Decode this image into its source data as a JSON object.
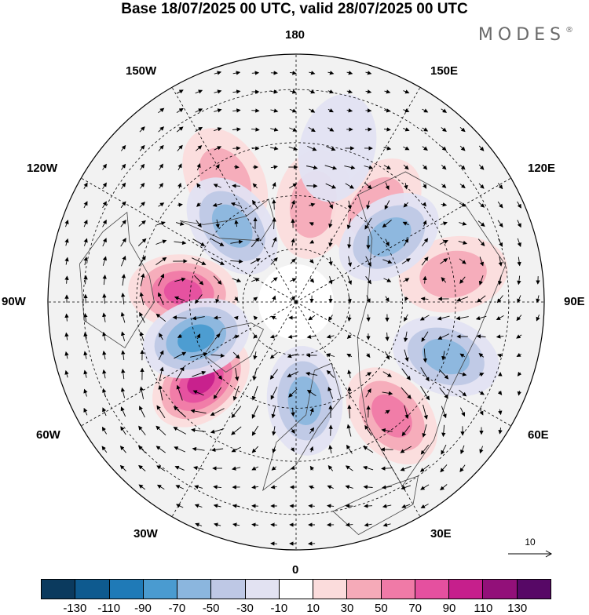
{
  "title": "Base 18/07/2025 00 UTC, valid 28/07/2025 00 UTC",
  "brand": "MODES",
  "brand_mark": "®",
  "longitude_labels": {
    "n180": "180",
    "n150e": "150E",
    "n120e": "120E",
    "n90e": "90E",
    "n60e": "60E",
    "n30e": "30E",
    "n0": "0",
    "n30w": "30W",
    "n60w": "60W",
    "n90w": "90W",
    "n120w": "120W",
    "n150w": "150W"
  },
  "reference_vector": {
    "label": "10"
  },
  "colorbar": {
    "colors": [
      "#0b3a5e",
      "#0e5a8f",
      "#1f7ab7",
      "#4a9bd0",
      "#8bb6de",
      "#bec8e5",
      "#e2e2f2",
      "#ffffff",
      "#fbdcdc",
      "#f5aab8",
      "#f07aa7",
      "#e5509f",
      "#c61f8c",
      "#921079",
      "#570866"
    ],
    "labels": [
      "-130",
      "-110",
      "-90",
      "-70",
      "-50",
      "-30",
      "-10",
      "10",
      "30",
      "50",
      "70",
      "90",
      "110",
      "130"
    ]
  },
  "anomaly_centers": [
    {
      "lon": -95,
      "lat": 58,
      "value": 80
    },
    {
      "lon": -50,
      "lat": 55,
      "value": 100
    },
    {
      "lon": 40,
      "lat": 48,
      "value": 60
    },
    {
      "lon": 100,
      "lat": 45,
      "value": 40
    },
    {
      "lon": 170,
      "lat": 62,
      "value": 30
    },
    {
      "lon": 140,
      "lat": 55,
      "value": 30
    },
    {
      "lon": -150,
      "lat": 50,
      "value": 30
    },
    {
      "lon": -140,
      "lat": 62,
      "value": -60
    },
    {
      "lon": -70,
      "lat": 60,
      "value": -70
    },
    {
      "lon": 5,
      "lat": 62,
      "value": -50
    },
    {
      "lon": 70,
      "lat": 45,
      "value": -50
    },
    {
      "lon": 125,
      "lat": 58,
      "value": -60
    },
    {
      "lon": 165,
      "lat": 45,
      "value": -20
    }
  ]
}
